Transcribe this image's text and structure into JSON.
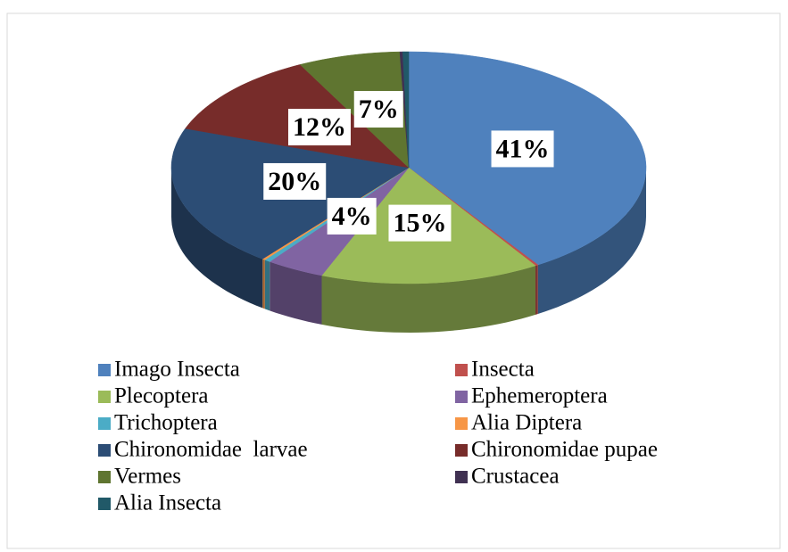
{
  "chart_data": {
    "type": "pie",
    "3d": true,
    "categories": [
      "Imago Insecta",
      "Insecta",
      "Plecoptera",
      "Ephemeroptera",
      "Trichoptera",
      "Alia Diptera",
      "Chironomidae  larvae",
      "Chironomidae pupae",
      "Vermes",
      "Crustacea",
      "Alia Insecta"
    ],
    "values": [
      41,
      0.2,
      15,
      4,
      0.4,
      0.2,
      20,
      12,
      7,
      0.2,
      0.4
    ],
    "value_labels": [
      "41%",
      null,
      "15%",
      "4%",
      null,
      null,
      "20%",
      "12%",
      "7%",
      null,
      null
    ],
    "colors": [
      "#4f81bd",
      "#c0504d",
      "#9bbb59",
      "#8064a2",
      "#4bacc6",
      "#f79646",
      "#2c4d75",
      "#772c2a",
      "#5f7530",
      "#403152",
      "#215968"
    ],
    "legend": "bottom"
  }
}
